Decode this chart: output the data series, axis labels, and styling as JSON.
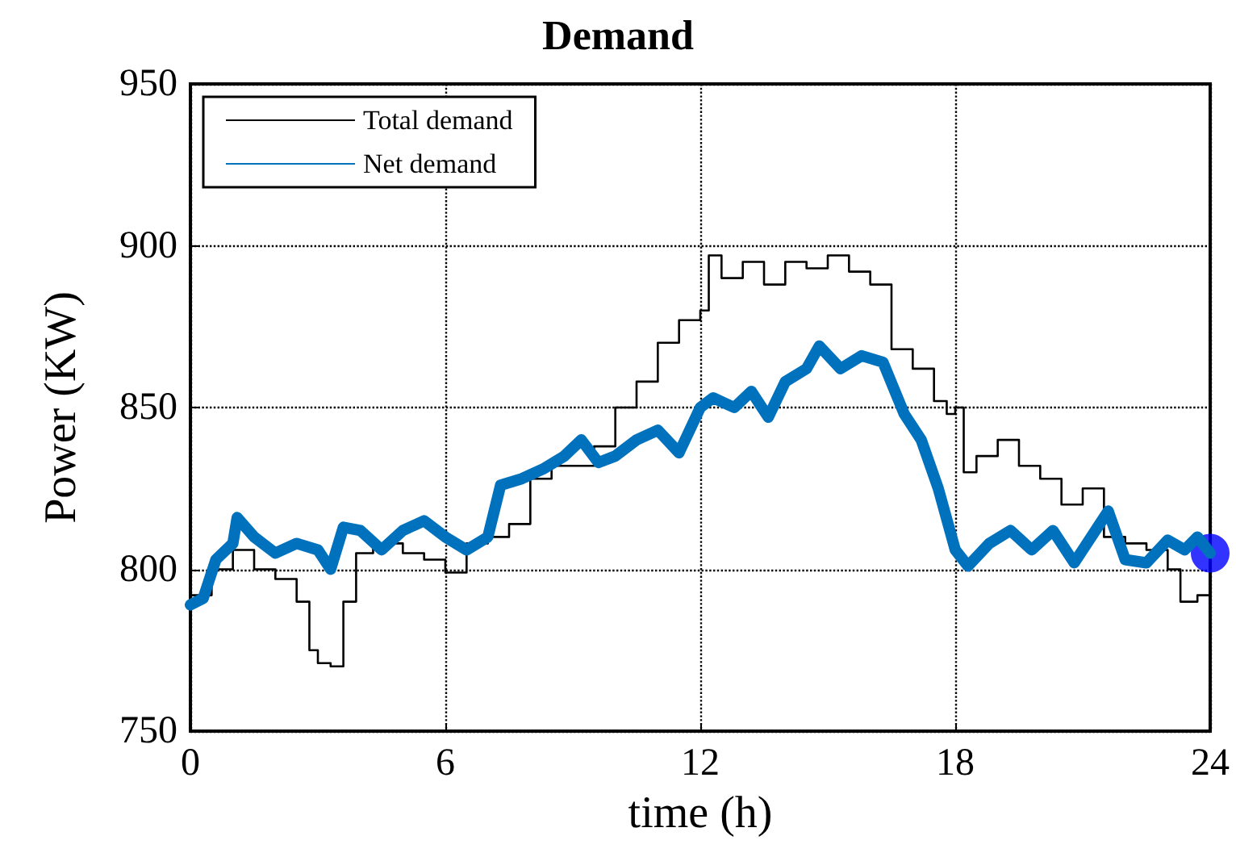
{
  "chart_data": {
    "type": "line",
    "title": "Demand",
    "xlabel": "time (h)",
    "ylabel": "Power (KW)",
    "xlim": [
      0,
      24
    ],
    "xticks": [
      0,
      6,
      12,
      18,
      24
    ],
    "ylim": [
      750,
      950
    ],
    "yticks": [
      750,
      800,
      850,
      900,
      950
    ],
    "grid": true,
    "legend": "top left",
    "series": [
      {
        "name": "Total demand",
        "type": "step",
        "color": "#000000",
        "x": [
          0,
          0.5,
          1,
          1.5,
          2,
          2.5,
          2.8,
          3,
          3.3,
          3.6,
          3.9,
          4.3,
          5,
          5.5,
          6,
          6.5,
          7,
          7.5,
          8,
          8.5,
          9,
          9.5,
          10,
          10.5,
          11,
          11.5,
          12,
          12.2,
          12.5,
          13,
          13.5,
          14,
          14.5,
          15,
          15.5,
          16,
          16.5,
          17,
          17.5,
          17.8,
          18,
          18.2,
          18.5,
          19,
          19.5,
          20,
          20.5,
          21,
          21.5,
          22,
          22.5,
          23,
          23.3,
          23.7,
          24
        ],
        "values": [
          792,
          800,
          806,
          800,
          797,
          790,
          775,
          771,
          770,
          790,
          805,
          808,
          805,
          803,
          799,
          808,
          810,
          814,
          828,
          832,
          832,
          838,
          850,
          858,
          870,
          877,
          880,
          897,
          890,
          895,
          888,
          895,
          893,
          897,
          892,
          888,
          868,
          862,
          852,
          848,
          850,
          830,
          835,
          840,
          832,
          828,
          820,
          825,
          810,
          808,
          806,
          800,
          790,
          792,
          786
        ]
      },
      {
        "name": "Net demand",
        "color": "#0072bd",
        "x": [
          0,
          0.3,
          0.6,
          1,
          1.1,
          1.5,
          2,
          2.5,
          3,
          3.3,
          3.6,
          4,
          4.5,
          5,
          5.5,
          6,
          6.5,
          7,
          7.3,
          7.8,
          8.3,
          8.8,
          9.2,
          9.6,
          10,
          10.5,
          11,
          11.5,
          12,
          12.3,
          12.8,
          13.2,
          13.6,
          14,
          14.5,
          14.8,
          15.3,
          15.8,
          16.3,
          16.8,
          17.2,
          17.6,
          18,
          18.3,
          18.8,
          19.3,
          19.8,
          20.3,
          20.8,
          21.3,
          21.6,
          22,
          22.5,
          23,
          23.4,
          23.7,
          24
        ],
        "values": [
          789,
          791,
          803,
          808,
          816,
          810,
          805,
          808,
          806,
          800,
          813,
          812,
          806,
          812,
          815,
          810,
          806,
          810,
          826,
          828,
          831,
          835,
          840,
          833,
          835,
          840,
          843,
          836,
          850,
          853,
          850,
          855,
          847,
          858,
          862,
          869,
          862,
          866,
          864,
          848,
          840,
          825,
          806,
          801,
          808,
          812,
          806,
          812,
          802,
          812,
          818,
          803,
          802,
          809,
          806,
          810,
          805
        ]
      },
      {
        "type": "scatter",
        "marker": "circle",
        "color": "#0000ff",
        "x": [
          24
        ],
        "values": [
          805
        ]
      }
    ]
  }
}
